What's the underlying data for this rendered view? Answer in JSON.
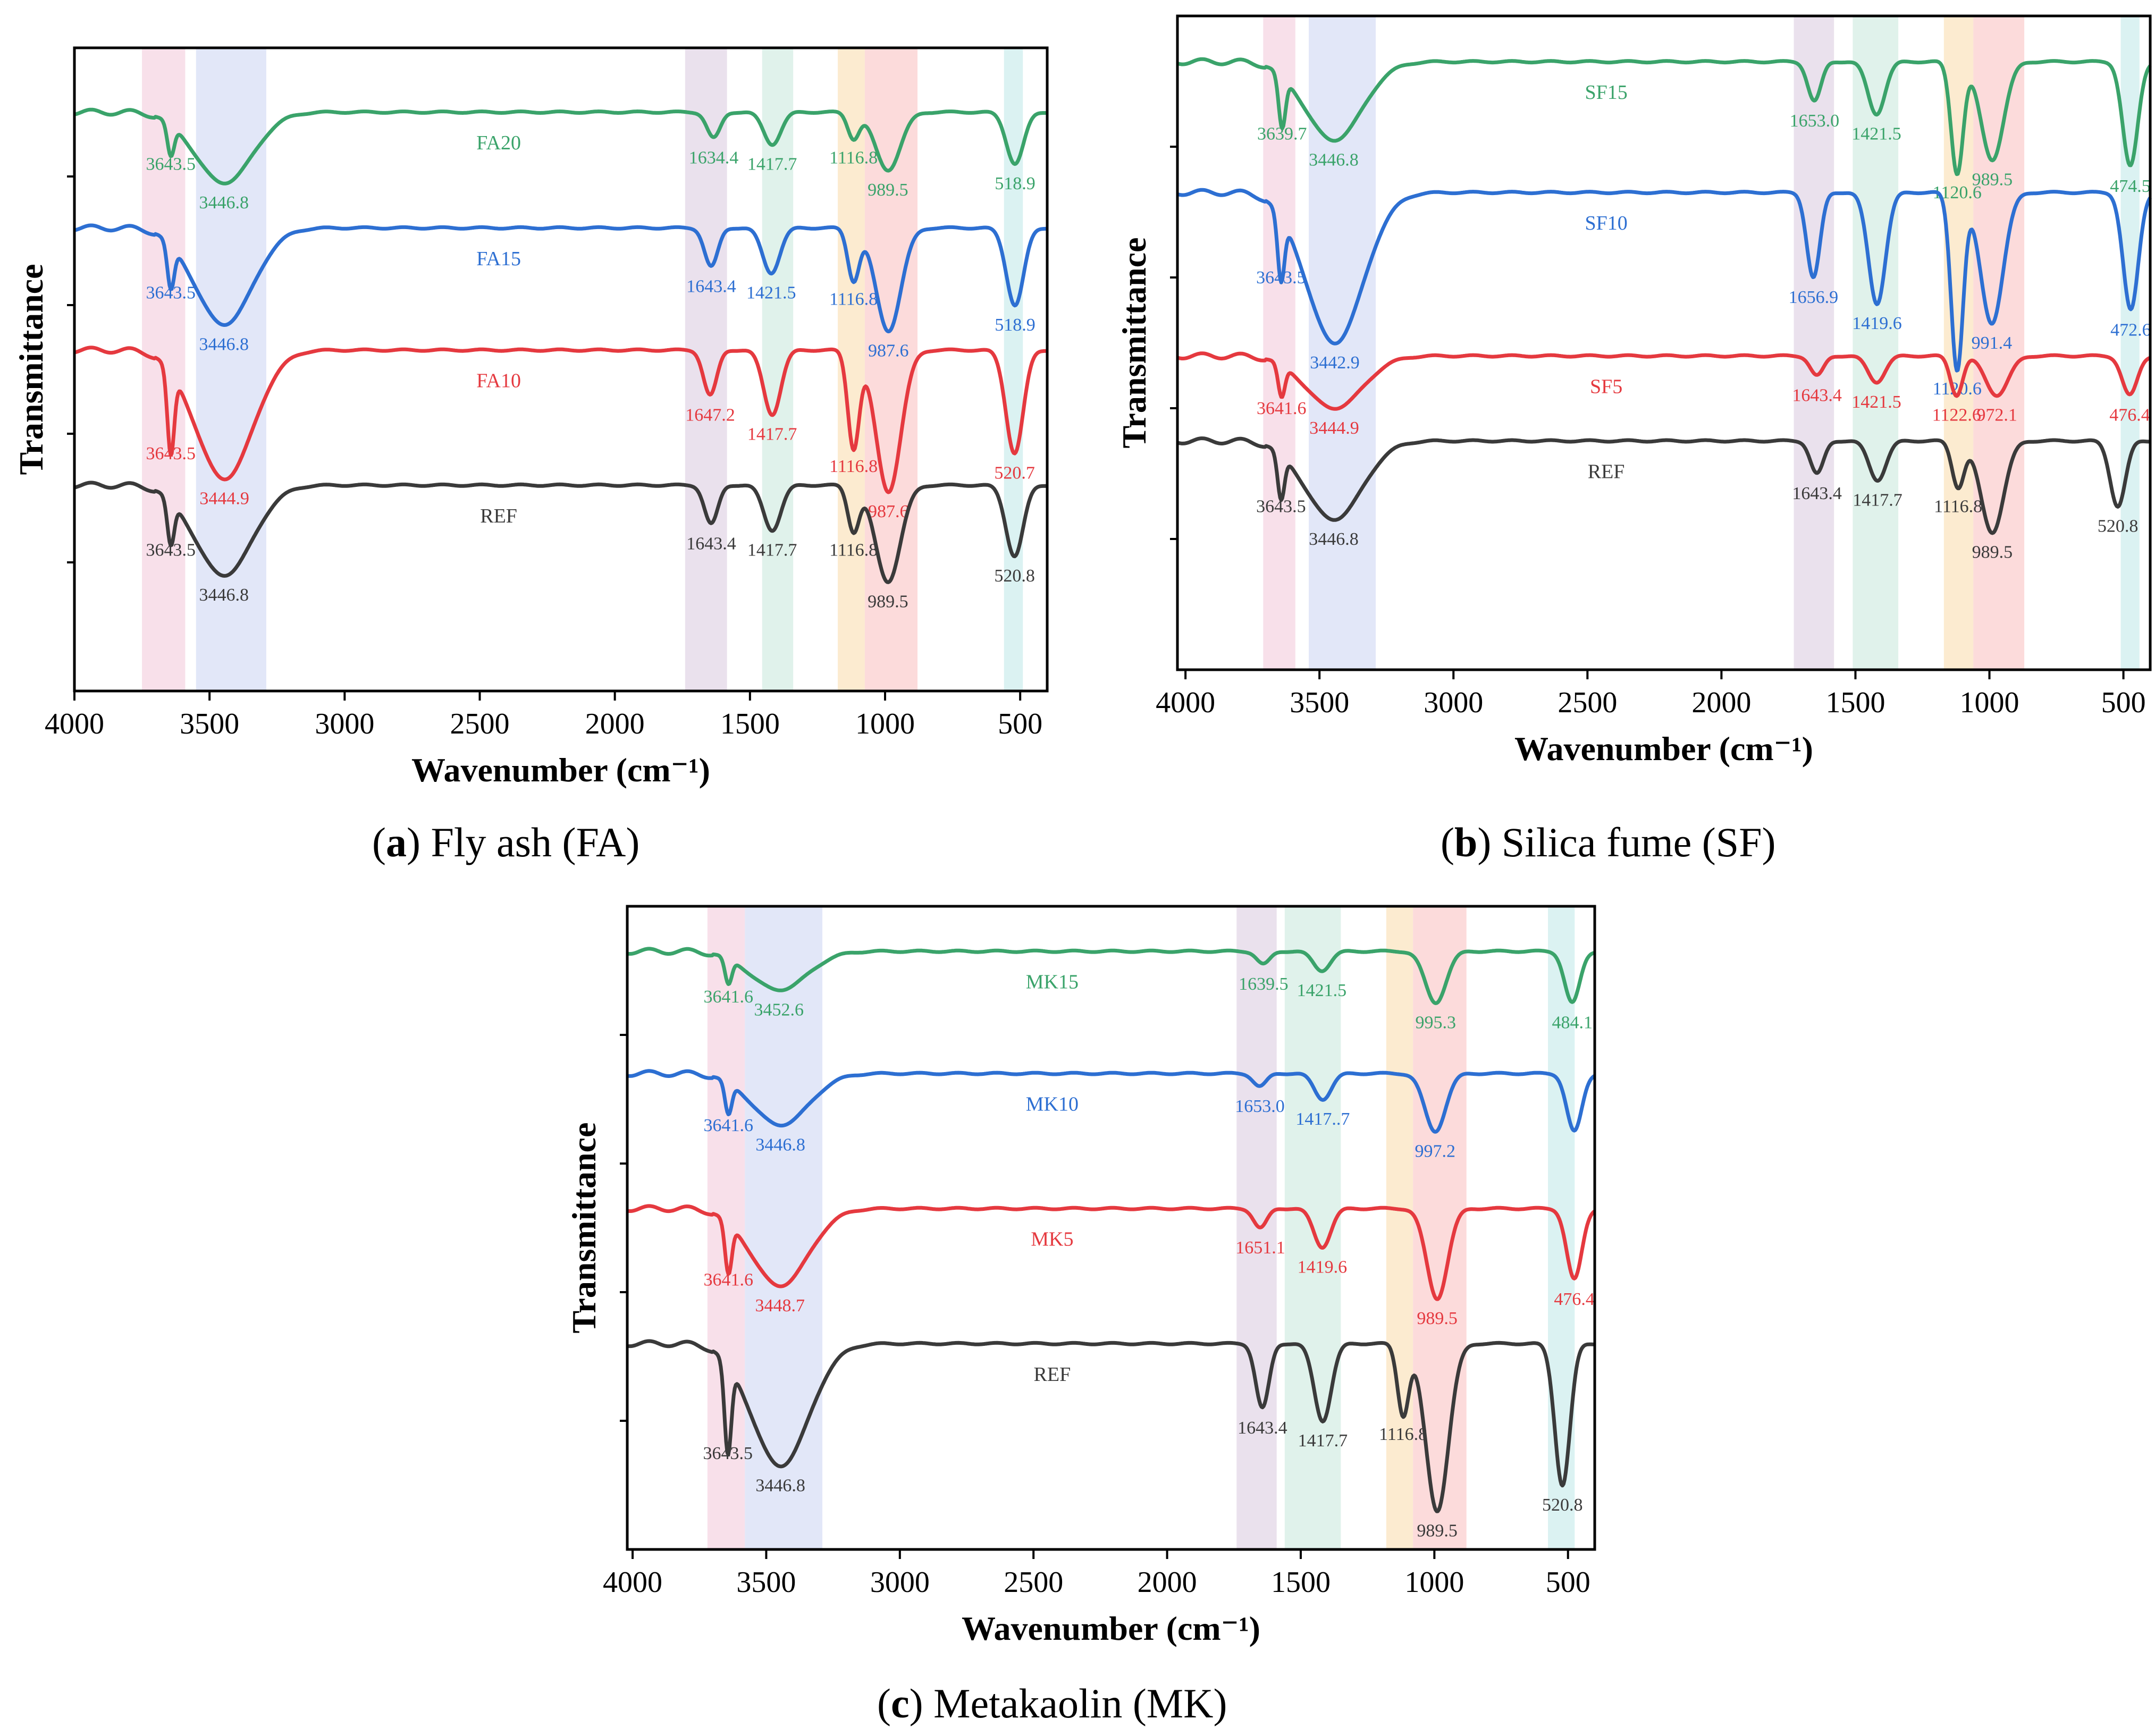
{
  "figure": {
    "captions": [
      {
        "letter": "a",
        "text": "Fly ash (FA)"
      },
      {
        "letter": "b",
        "text": "Silica fume (SF)"
      },
      {
        "letter": "c",
        "text": "Metakaolin (MK)"
      }
    ]
  },
  "chart_data": [
    {
      "id": "a",
      "type": "line",
      "xlabel": "Wavenumber (cm⁻¹)",
      "ylabel": "Transmittance",
      "xlim": [
        4000,
        400
      ],
      "xticks": [
        4000,
        3500,
        3000,
        2500,
        2000,
        1500,
        1000,
        500
      ],
      "x_reversed": true,
      "y_ticks_labeled": false,
      "grid": false,
      "bands": [
        {
          "range": [
            3750,
            3590
          ],
          "color": "#f7dbe6"
        },
        {
          "range": [
            3550,
            3290
          ],
          "color": "#dde3f7"
        },
        {
          "range": [
            1740,
            1585
          ],
          "color": "#e6dcea"
        },
        {
          "range": [
            1455,
            1340
          ],
          "color": "#daf0e8"
        },
        {
          "range": [
            1175,
            1075
          ],
          "color": "#fbe7c8"
        },
        {
          "range": [
            1075,
            880
          ],
          "color": "#fbd5d5"
        },
        {
          "range": [
            560,
            490
          ],
          "color": "#d5f0f0"
        }
      ],
      "series": [
        {
          "name": "FA20",
          "color": "#3aa36a",
          "baseline": 0.9,
          "peaks": [
            {
              "x": 3643.5,
              "label": "3643.5",
              "depth": 0.05,
              "width": 18
            },
            {
              "x": 3446.8,
              "label": "3446.8",
              "depth": 0.11,
              "width": 150
            },
            {
              "x": 1634.4,
              "label": "1634.4",
              "depth": 0.04,
              "width": 35
            },
            {
              "x": 1417.7,
              "label": "1417.7",
              "depth": 0.05,
              "width": 45
            },
            {
              "x": 1116.8,
              "label": "1116.8",
              "depth": 0.04,
              "width": 30
            },
            {
              "x": 989.5,
              "label": "989.5",
              "depth": 0.09,
              "width": 65
            },
            {
              "x": 518.9,
              "label": "518.9",
              "depth": 0.08,
              "width": 45
            }
          ]
        },
        {
          "name": "FA15",
          "color": "#2d6fd2",
          "baseline": 0.72,
          "peaks": [
            {
              "x": 3643.5,
              "label": "3643.5",
              "depth": 0.07,
              "width": 18
            },
            {
              "x": 3446.8,
              "label": "3446.8",
              "depth": 0.15,
              "width": 150
            },
            {
              "x": 1643.4,
              "label": "1643.4",
              "depth": 0.06,
              "width": 35
            },
            {
              "x": 1421.5,
              "label": "1421.5",
              "depth": 0.07,
              "width": 45
            },
            {
              "x": 1116.8,
              "label": "1116.8",
              "depth": 0.08,
              "width": 30
            },
            {
              "x": 987.6,
              "label": "987.6",
              "depth": 0.16,
              "width": 65
            },
            {
              "x": 518.9,
              "label": "518.9",
              "depth": 0.12,
              "width": 45
            }
          ]
        },
        {
          "name": "FA10",
          "color": "#e5393f",
          "baseline": 0.53,
          "peaks": [
            {
              "x": 3643.5,
              "label": "3643.5",
              "depth": 0.13,
              "width": 18
            },
            {
              "x": 3444.9,
              "label": "3444.9",
              "depth": 0.2,
              "width": 150
            },
            {
              "x": 1647.2,
              "label": "1647.2",
              "depth": 0.07,
              "width": 35
            },
            {
              "x": 1417.7,
              "label": "1417.7",
              "depth": 0.1,
              "width": 45
            },
            {
              "x": 1116.8,
              "label": "1116.8",
              "depth": 0.15,
              "width": 30
            },
            {
              "x": 987.6,
              "label": "987.6",
              "depth": 0.22,
              "width": 65
            },
            {
              "x": 520.7,
              "label": "520.7",
              "depth": 0.16,
              "width": 45
            }
          ]
        },
        {
          "name": "REF",
          "color": "#3a3a3a",
          "baseline": 0.32,
          "peaks": [
            {
              "x": 3643.5,
              "label": "3643.5",
              "depth": 0.07,
              "width": 18
            },
            {
              "x": 3446.8,
              "label": "3446.8",
              "depth": 0.14,
              "width": 150
            },
            {
              "x": 1643.4,
              "label": "1643.4",
              "depth": 0.06,
              "width": 35
            },
            {
              "x": 1417.7,
              "label": "1417.7",
              "depth": 0.07,
              "width": 45
            },
            {
              "x": 1116.8,
              "label": "1116.8",
              "depth": 0.07,
              "width": 30
            },
            {
              "x": 989.5,
              "label": "989.5",
              "depth": 0.15,
              "width": 65
            },
            {
              "x": 520.8,
              "label": "520.8",
              "depth": 0.11,
              "width": 45
            }
          ]
        }
      ]
    },
    {
      "id": "b",
      "type": "line",
      "xlabel": "Wavenumber (cm⁻¹)",
      "ylabel": "Transmittance",
      "xlim": [
        4030,
        400
      ],
      "xticks": [
        4000,
        3500,
        3000,
        2500,
        2000,
        1500,
        1000,
        500
      ],
      "x_reversed": true,
      "y_ticks_labeled": false,
      "grid": false,
      "bands": [
        {
          "range": [
            3710,
            3590
          ],
          "color": "#f7dbe6"
        },
        {
          "range": [
            3540,
            3290
          ],
          "color": "#dde3f7"
        },
        {
          "range": [
            1730,
            1580
          ],
          "color": "#e6dcea"
        },
        {
          "range": [
            1510,
            1340
          ],
          "color": "#daf0e8"
        },
        {
          "range": [
            1170,
            1060
          ],
          "color": "#fbe7c8"
        },
        {
          "range": [
            1060,
            870
          ],
          "color": "#fbd5d5"
        },
        {
          "range": [
            510,
            440
          ],
          "color": "#d5f0f0"
        }
      ],
      "series": [
        {
          "name": "SF15",
          "color": "#3aa36a",
          "baseline": 0.93,
          "peaks": [
            {
              "x": 3639.7,
              "label": "3639.7",
              "depth": 0.08,
              "width": 18
            },
            {
              "x": 3446.8,
              "label": "3446.8",
              "depth": 0.12,
              "width": 150
            },
            {
              "x": 1653.0,
              "label": "1653.0",
              "depth": 0.06,
              "width": 35
            },
            {
              "x": 1421.5,
              "label": "1421.5",
              "depth": 0.08,
              "width": 45
            },
            {
              "x": 1120.6,
              "label": "1120.6",
              "depth": 0.17,
              "width": 32
            },
            {
              "x": 989.5,
              "label": "989.5",
              "depth": 0.15,
              "width": 60
            },
            {
              "x": 474.5,
              "label": "474.5",
              "depth": 0.16,
              "width": 40
            }
          ]
        },
        {
          "name": "SF10",
          "color": "#2d6fd2",
          "baseline": 0.73,
          "peaks": [
            {
              "x": 3643.5,
              "label": "3643.5",
              "depth": 0.1,
              "width": 18
            },
            {
              "x": 3442.9,
              "label": "3442.9",
              "depth": 0.23,
              "width": 150
            },
            {
              "x": 1656.9,
              "label": "1656.9",
              "depth": 0.13,
              "width": 35
            },
            {
              "x": 1419.6,
              "label": "1419.6",
              "depth": 0.17,
              "width": 45
            },
            {
              "x": 1120.6,
              "label": "1120.6",
              "depth": 0.27,
              "width": 32
            },
            {
              "x": 991.4,
              "label": "991.4",
              "depth": 0.2,
              "width": 60
            },
            {
              "x": 472.6,
              "label": "472.6",
              "depth": 0.18,
              "width": 40
            }
          ]
        },
        {
          "name": "SF5",
          "color": "#e5393f",
          "baseline": 0.48,
          "peaks": [
            {
              "x": 3641.6,
              "label": "3641.6",
              "depth": 0.05,
              "width": 18
            },
            {
              "x": 3444.9,
              "label": "3444.9",
              "depth": 0.08,
              "width": 150
            },
            {
              "x": 1643.4,
              "label": "1643.4",
              "depth": 0.03,
              "width": 35
            },
            {
              "x": 1421.5,
              "label": "1421.5",
              "depth": 0.04,
              "width": 45
            },
            {
              "x": 1122.6,
              "label": "1122.6",
              "depth": 0.06,
              "width": 32
            },
            {
              "x": 972.1,
              "label": "972.1",
              "depth": 0.06,
              "width": 60
            },
            {
              "x": 476.4,
              "label": "476.4",
              "depth": 0.06,
              "width": 40
            }
          ]
        },
        {
          "name": "REF",
          "color": "#3a3a3a",
          "baseline": 0.35,
          "peaks": [
            {
              "x": 3643.5,
              "label": "3643.5",
              "depth": 0.07,
              "width": 18
            },
            {
              "x": 3446.8,
              "label": "3446.8",
              "depth": 0.12,
              "width": 150
            },
            {
              "x": 1643.4,
              "label": "1643.4",
              "depth": 0.05,
              "width": 35
            },
            {
              "x": 1417.7,
              "label": "1417.7",
              "depth": 0.06,
              "width": 45
            },
            {
              "x": 1116.8,
              "label": "1116.8",
              "depth": 0.07,
              "width": 32
            },
            {
              "x": 989.5,
              "label": "989.5",
              "depth": 0.14,
              "width": 60
            },
            {
              "x": 520.8,
              "label": "520.8",
              "depth": 0.1,
              "width": 40
            }
          ]
        }
      ]
    },
    {
      "id": "c",
      "type": "line",
      "xlabel": "Wavenumber (cm⁻¹)",
      "ylabel": "Transmittance",
      "xlim": [
        4020,
        400
      ],
      "xticks": [
        4000,
        3500,
        3000,
        2500,
        2000,
        1500,
        1000,
        500
      ],
      "x_reversed": true,
      "y_ticks_labeled": false,
      "grid": false,
      "bands": [
        {
          "range": [
            3720,
            3580
          ],
          "color": "#f7dbe6"
        },
        {
          "range": [
            3580,
            3290
          ],
          "color": "#dde3f7"
        },
        {
          "range": [
            1740,
            1590
          ],
          "color": "#e6dcea"
        },
        {
          "range": [
            1560,
            1350
          ],
          "color": "#daf0e8"
        },
        {
          "range": [
            1180,
            1080
          ],
          "color": "#fbe7c8"
        },
        {
          "range": [
            1080,
            880
          ],
          "color": "#fbd5d5"
        },
        {
          "range": [
            575,
            475
          ],
          "color": "#d5f0f0"
        }
      ],
      "series": [
        {
          "name": "MK15",
          "color": "#3aa36a",
          "baseline": 0.93,
          "peaks": [
            {
              "x": 3641.6,
              "label": "3641.6",
              "depth": 0.04,
              "width": 18
            },
            {
              "x": 3452.6,
              "label": "3452.6",
              "depth": 0.06,
              "width": 150
            },
            {
              "x": 1639.5,
              "label": "1639.5",
              "depth": 0.02,
              "width": 35
            },
            {
              "x": 1421.5,
              "label": "1421.5",
              "depth": 0.03,
              "width": 45
            },
            {
              "x": 995.3,
              "label": "995.3",
              "depth": 0.08,
              "width": 55
            },
            {
              "x": 484.1,
              "label": "484.1",
              "depth": 0.08,
              "width": 40
            }
          ]
        },
        {
          "name": "MK10",
          "color": "#2d6fd2",
          "baseline": 0.74,
          "peaks": [
            {
              "x": 3641.6,
              "label": "3641.6",
              "depth": 0.05,
              "width": 18
            },
            {
              "x": 3446.8,
              "label": "3446.8",
              "depth": 0.08,
              "width": 150
            },
            {
              "x": 1653.0,
              "label": "1653.0",
              "depth": 0.02,
              "width": 35
            },
            {
              "x": 1417.7,
              "label": "1417..7",
              "depth": 0.04,
              "width": 45
            },
            {
              "x": 997.2,
              "label": "997.2",
              "depth": 0.09,
              "width": 55
            },
            {
              "x": 476.4,
              "label": "",
              "depth": 0.09,
              "width": 40
            }
          ]
        },
        {
          "name": "MK5",
          "color": "#e5393f",
          "baseline": 0.53,
          "peaks": [
            {
              "x": 3641.6,
              "label": "3641.6",
              "depth": 0.08,
              "width": 18
            },
            {
              "x": 3448.7,
              "label": "3448.7",
              "depth": 0.12,
              "width": 150
            },
            {
              "x": 1651.1,
              "label": "1651.1",
              "depth": 0.03,
              "width": 35
            },
            {
              "x": 1419.6,
              "label": "1419.6",
              "depth": 0.06,
              "width": 45
            },
            {
              "x": 989.5,
              "label": "989.5",
              "depth": 0.14,
              "width": 55
            },
            {
              "x": 476.4,
              "label": "476.4",
              "depth": 0.11,
              "width": 40
            }
          ]
        },
        {
          "name": "REF",
          "color": "#3a3a3a",
          "baseline": 0.32,
          "peaks": [
            {
              "x": 3643.5,
              "label": "3643.5",
              "depth": 0.14,
              "width": 18
            },
            {
              "x": 3446.8,
              "label": "3446.8",
              "depth": 0.19,
              "width": 150
            },
            {
              "x": 1643.4,
              "label": "1643.4",
              "depth": 0.1,
              "width": 35
            },
            {
              "x": 1417.7,
              "label": "1417.7",
              "depth": 0.12,
              "width": 45
            },
            {
              "x": 1116.8,
              "label": "1116.8",
              "depth": 0.11,
              "width": 30
            },
            {
              "x": 989.5,
              "label": "989.5",
              "depth": 0.26,
              "width": 60
            },
            {
              "x": 520.8,
              "label": "520.8",
              "depth": 0.22,
              "width": 40
            }
          ]
        }
      ]
    }
  ]
}
